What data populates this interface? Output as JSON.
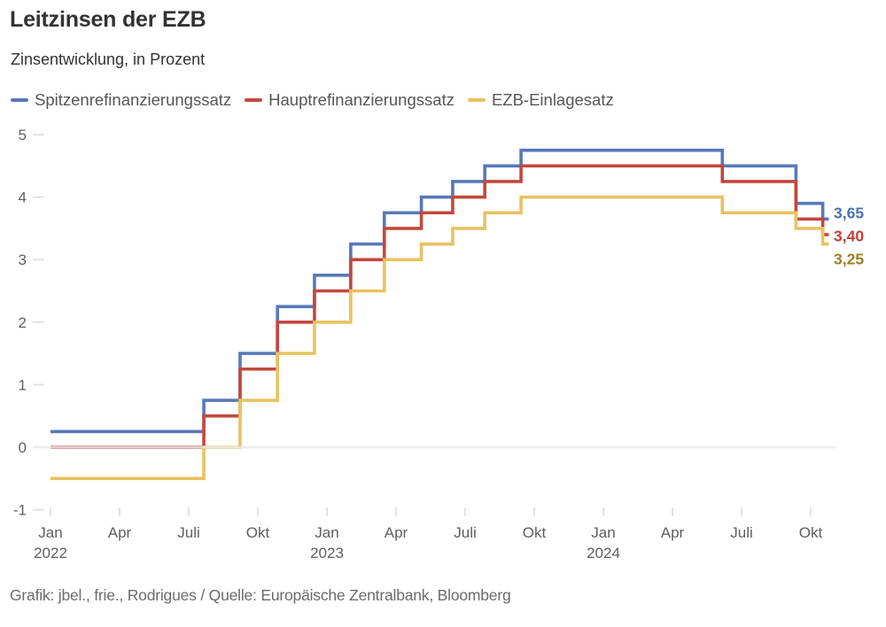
{
  "header": {
    "title": "Leitzinsen der EZB",
    "subtitle": "Zinsentwicklung, in Prozent"
  },
  "footer": {
    "credit": "Grafik: jbel., frie., Rodrigues / Quelle: Europäische Zentralbank, Bloomberg"
  },
  "colors": {
    "axis_text": "#5e5e5e",
    "tick": "#e2e2e2",
    "zero_grid": "#ededed",
    "zero_overlay": "rgba(237,237,237,0.82)"
  },
  "chart_data": {
    "type": "line",
    "line_style": "step-after",
    "title": "Leitzinsen der EZB",
    "subtitle": "Zinsentwicklung, in Prozent",
    "ylim": [
      -1,
      5
    ],
    "y_ticks": [
      5,
      4,
      3,
      2,
      1,
      0,
      -1
    ],
    "x_range": [
      "2022-01-01",
      "2024-10-25"
    ],
    "x_ticks": [
      {
        "date": "2022-01-01",
        "label": "Jan",
        "year": "2022"
      },
      {
        "date": "2022-04-01",
        "label": "Apr"
      },
      {
        "date": "2022-07-01",
        "label": "Juli"
      },
      {
        "date": "2022-10-01",
        "label": "Okt"
      },
      {
        "date": "2023-01-01",
        "label": "Jan",
        "year": "2023"
      },
      {
        "date": "2023-04-01",
        "label": "Apr"
      },
      {
        "date": "2023-07-01",
        "label": "Juli"
      },
      {
        "date": "2023-10-01",
        "label": "Okt"
      },
      {
        "date": "2024-01-01",
        "label": "Jan",
        "year": "2024"
      },
      {
        "date": "2024-04-01",
        "label": "Apr"
      },
      {
        "date": "2024-07-01",
        "label": "Juli"
      },
      {
        "date": "2024-10-01",
        "label": "Okt"
      }
    ],
    "legend_position": "top",
    "grid": "zero-line-only",
    "series": [
      {
        "name": "Spitzenrefinanzierungssatz",
        "color": "#5878b8",
        "end_label": "3,65",
        "end_label_color": "#4a6fb5",
        "steps": [
          [
            "2022-01-01",
            0.25
          ],
          [
            "2022-07-21",
            0.75
          ],
          [
            "2022-09-08",
            1.5
          ],
          [
            "2022-10-27",
            2.25
          ],
          [
            "2022-12-15",
            2.75
          ],
          [
            "2023-02-02",
            3.25
          ],
          [
            "2023-03-16",
            3.75
          ],
          [
            "2023-05-04",
            4.0
          ],
          [
            "2023-06-15",
            4.25
          ],
          [
            "2023-07-27",
            4.5
          ],
          [
            "2023-09-14",
            4.75
          ],
          [
            "2024-06-06",
            4.5
          ],
          [
            "2024-09-12",
            3.9
          ],
          [
            "2024-10-17",
            3.65
          ]
        ]
      },
      {
        "name": "Hauptrefinanzierungssatz",
        "color": "#c4473d",
        "end_label": "3,40",
        "end_label_color": "#c23f35",
        "steps": [
          [
            "2022-01-01",
            0.0
          ],
          [
            "2022-07-21",
            0.5
          ],
          [
            "2022-09-08",
            1.25
          ],
          [
            "2022-10-27",
            2.0
          ],
          [
            "2022-12-15",
            2.5
          ],
          [
            "2023-02-02",
            3.0
          ],
          [
            "2023-03-16",
            3.5
          ],
          [
            "2023-05-04",
            3.75
          ],
          [
            "2023-06-15",
            4.0
          ],
          [
            "2023-07-27",
            4.25
          ],
          [
            "2023-09-14",
            4.5
          ],
          [
            "2024-06-06",
            4.25
          ],
          [
            "2024-09-12",
            3.65
          ],
          [
            "2024-10-17",
            3.4
          ]
        ]
      },
      {
        "name": "EZB-Einlagesatz",
        "color": "#e9c260",
        "end_label": "3,25",
        "end_label_color": "#9c7f1f",
        "steps": [
          [
            "2022-01-01",
            -0.5
          ],
          [
            "2022-07-21",
            0.0
          ],
          [
            "2022-09-08",
            0.75
          ],
          [
            "2022-10-27",
            1.5
          ],
          [
            "2022-12-15",
            2.0
          ],
          [
            "2023-02-02",
            2.5
          ],
          [
            "2023-03-16",
            3.0
          ],
          [
            "2023-05-04",
            3.25
          ],
          [
            "2023-06-15",
            3.5
          ],
          [
            "2023-07-27",
            3.75
          ],
          [
            "2023-09-14",
            4.0
          ],
          [
            "2024-06-06",
            3.75
          ],
          [
            "2024-09-12",
            3.5
          ],
          [
            "2024-10-17",
            3.25
          ]
        ]
      }
    ]
  }
}
